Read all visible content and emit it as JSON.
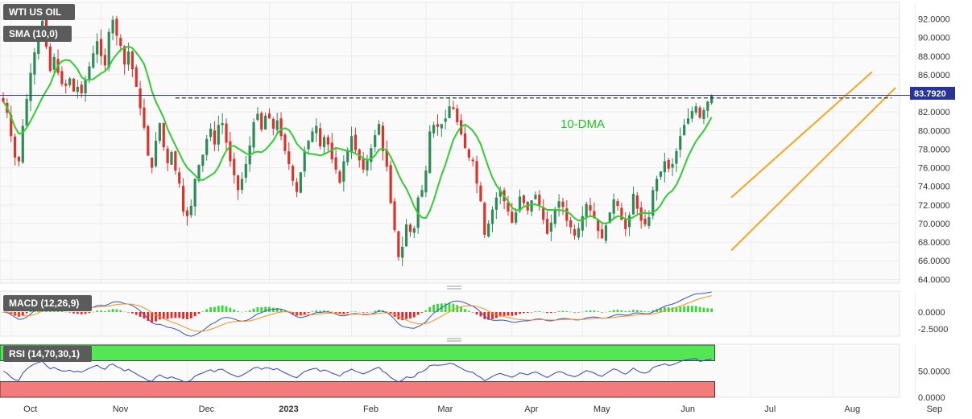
{
  "panels": {
    "price_label": "WTI US OIL",
    "sma_label": "SMA (10,0)",
    "macd_label": "MACD (12,26,9)",
    "rsi_label": "RSI (14,70,30,1)",
    "annotation": "10-DMA",
    "last_price": "83.7920"
  },
  "colors": {
    "up": "#2e8b57",
    "down": "#d9342b",
    "sma": "#33cc33",
    "channel": "#f5a623",
    "macd_line": "#3355cc",
    "signal_line": "#ff8c1a",
    "hist_up": "#33dd33",
    "hist_down": "#ee2222",
    "rsi_line": "#3344bb",
    "rsi_overbought": "#55e655",
    "rsi_oversold": "#f47b7b"
  },
  "chart_data": [
    {
      "type": "candlestick",
      "series_name": "WTI US OIL",
      "y_ticks": [
        "92.0000",
        "90.0000",
        "88.0000",
        "86.0000",
        "84.0000",
        "82.0000",
        "80.0000",
        "78.0000",
        "76.0000",
        "74.0000",
        "72.0000",
        "70.0000",
        "68.0000",
        "66.0000",
        "64.0000"
      ],
      "y_range": [
        63.6,
        93.6
      ],
      "x_ticks": [
        {
          "label": "Oct",
          "bar": 2
        },
        {
          "label": "Nov",
          "bar": 25
        },
        {
          "label": "Dec",
          "bar": 47
        },
        {
          "label": "2023",
          "bar": 68,
          "bold": true
        },
        {
          "label": "Feb",
          "bar": 89
        },
        {
          "label": "Mar",
          "bar": 108
        },
        {
          "label": "Apr",
          "bar": 130
        },
        {
          "label": "May",
          "bar": 148
        },
        {
          "label": "Jun",
          "bar": 170
        },
        {
          "label": "Jul",
          "bar": 191
        },
        {
          "label": "Aug",
          "bar": 212
        },
        {
          "label": "Sep",
          "bar": 233
        }
      ],
      "close": [
        83.1,
        81.9,
        79.4,
        77.1,
        76.7,
        80.5,
        83.4,
        86.2,
        88.4,
        90.2,
        91.8,
        89.0,
        86.4,
        87.9,
        86.2,
        85.0,
        84.8,
        85.6,
        84.2,
        84.7,
        84.0,
        85.4,
        86.9,
        88.3,
        89.6,
        88.0,
        87.0,
        90.6,
        91.9,
        90.2,
        89.1,
        87.1,
        88.5,
        86.6,
        84.7,
        82.4,
        80.3,
        77.3,
        76.0,
        78.9,
        80.8,
        78.2,
        76.5,
        77.7,
        75.7,
        74.3,
        71.3,
        70.8,
        71.9,
        74.8,
        76.3,
        77.4,
        79.1,
        80.2,
        78.5,
        80.6,
        80.8,
        78.7,
        76.7,
        75.2,
        73.6,
        74.8,
        76.4,
        78.4,
        80.9,
        81.8,
        80.1,
        81.6,
        81.3,
        80.2,
        81.1,
        79.4,
        77.8,
        76.4,
        74.6,
        73.4,
        75.5,
        77.8,
        78.9,
        79.9,
        80.5,
        78.3,
        79.3,
        78.5,
        76.9,
        75.8,
        74.4,
        76.7,
        77.8,
        79.4,
        77.9,
        76.8,
        75.8,
        76.8,
        78.1,
        79.5,
        80.7,
        77.8,
        76.1,
        72.2,
        69.3,
        66.4,
        67.5,
        69.9,
        69.1,
        69.5,
        72.8,
        73.6,
        75.7,
        79.9,
        80.6,
        80.4,
        80.7,
        81.3,
        82.6,
        82.3,
        80.9,
        79.6,
        78.1,
        77.1,
        76.7,
        74.3,
        72.4,
        68.8,
        70.0,
        71.5,
        72.8,
        73.6,
        72.4,
        71.3,
        70.1,
        71.2,
        72.9,
        72.2,
        71.4,
        72.5,
        73.1,
        72.0,
        70.4,
        68.9,
        70.1,
        71.5,
        72.4,
        71.8,
        70.3,
        69.6,
        68.7,
        69.5,
        70.8,
        72.1,
        71.4,
        70.6,
        69.2,
        68.4,
        69.8,
        71.2,
        72.6,
        71.9,
        70.4,
        69.4,
        70.9,
        73.2,
        71.6,
        70.3,
        69.9,
        70.7,
        73.6,
        74.8,
        75.6,
        76.7,
        75.9,
        76.4,
        77.8,
        79.4,
        80.6,
        81.3,
        82.1,
        82.6,
        81.4,
        82.2,
        83.1,
        83.8
      ],
      "sma_close_equivalent": "10-period simple moving average of close",
      "channel_lines": [
        {
          "from": {
            "bar": 186,
            "price": 67.1
          },
          "to": {
            "bar": 228,
            "price": 84.6
          }
        },
        {
          "from": {
            "bar": 186,
            "price": 72.8
          },
          "to": {
            "bar": 222,
            "price": 86.3
          }
        }
      ],
      "resistance_price": 83.5,
      "last_price": 83.792
    },
    {
      "type": "macd",
      "series_name": "MACD (12,26,9)",
      "y_ticks": [
        "0.0000",
        "-2.5000"
      ],
      "y_range": [
        -3.6,
        3.0
      ]
    },
    {
      "type": "rsi",
      "series_name": "RSI (14,70,30,1)",
      "y_ticks": [
        "50.0000",
        "0.0000"
      ],
      "y_range": [
        0,
        100
      ],
      "overbought": 70,
      "oversold": 30
    }
  ]
}
